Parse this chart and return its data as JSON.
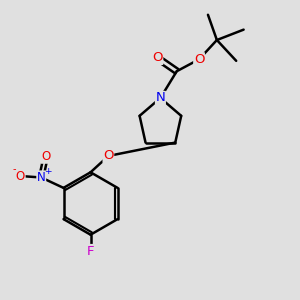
{
  "bg_color": "#e0e0e0",
  "bond_color": "#000000",
  "bond_width": 1.8,
  "atom_colors": {
    "C": "#000000",
    "N": "#0000ee",
    "O": "#ee0000",
    "F": "#cc00cc",
    "NO2_N": "#0000ee",
    "NO2_O": "#ee0000"
  },
  "figsize": [
    3.0,
    3.0
  ],
  "dpi": 100,
  "bg_label": "#e0e0e0"
}
